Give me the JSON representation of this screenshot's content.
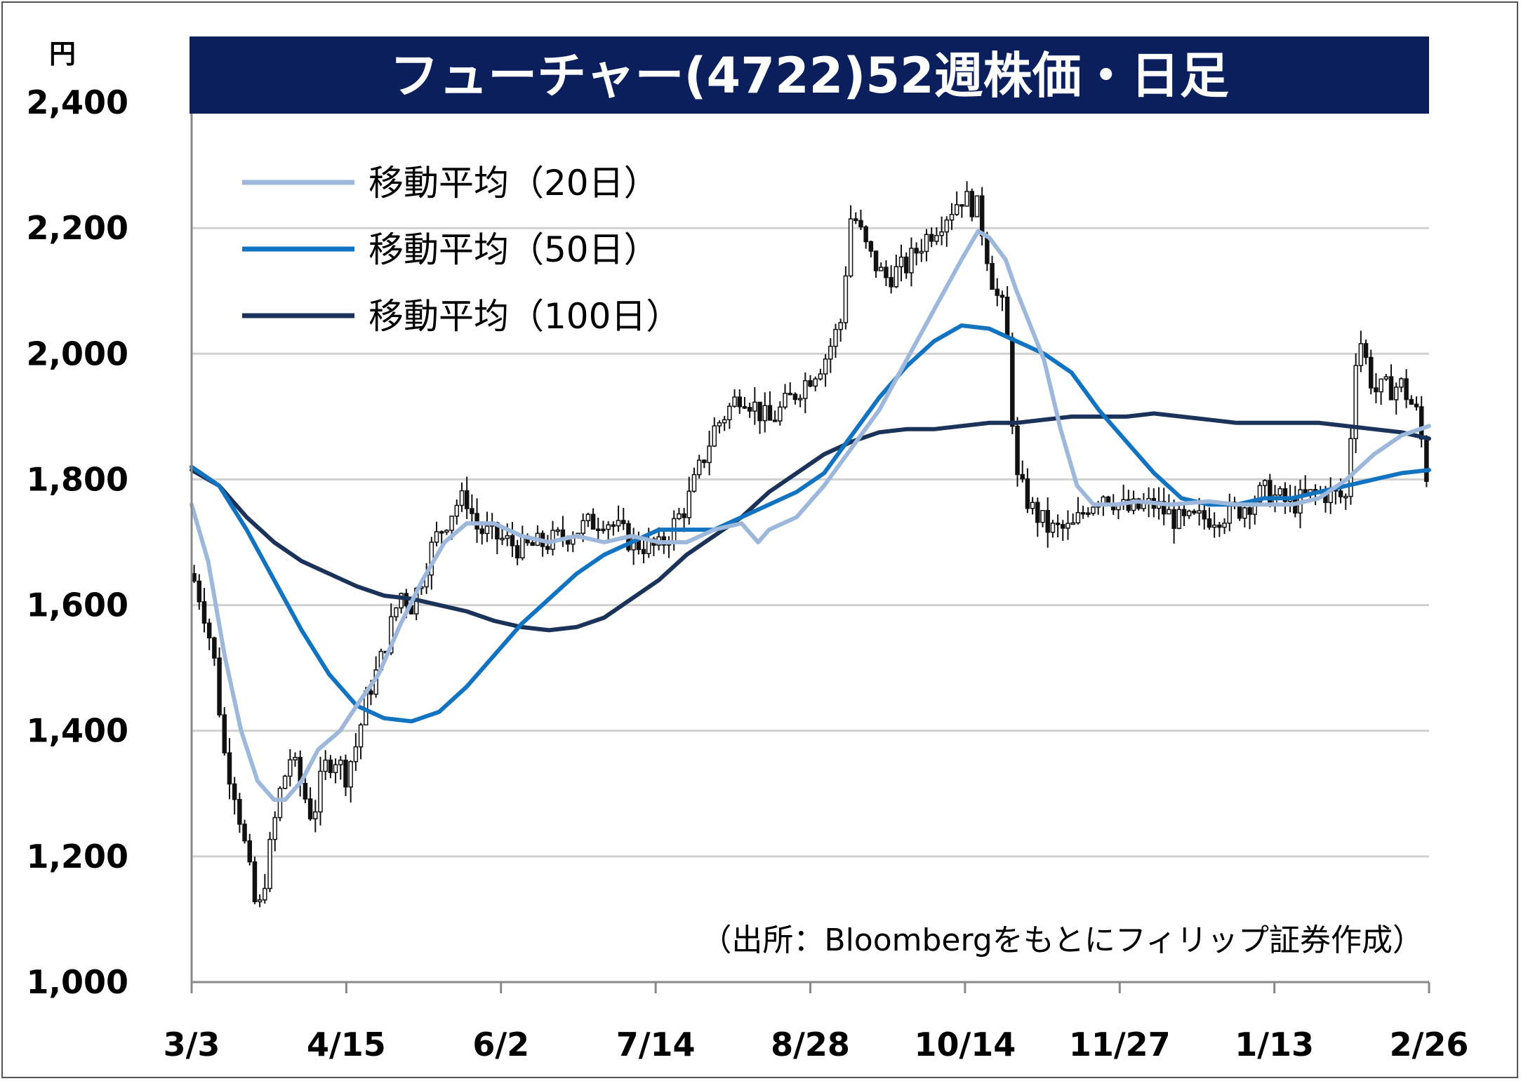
{
  "chart_data": {
    "type": "candlestick",
    "title": "フューチャー(4722)52週株価・日足",
    "ylabel": "円",
    "ylim": [
      1000,
      2400
    ],
    "yticks": [
      "2,400",
      "2,200",
      "2,000",
      "1,800",
      "1,600",
      "1,400",
      "1,200",
      "1,000"
    ],
    "ytick_values": [
      2400,
      2200,
      2000,
      1800,
      1600,
      1400,
      1200,
      1000
    ],
    "xticks": [
      "3/3",
      "4/15",
      "6/2",
      "7/14",
      "8/28",
      "10/14",
      "11/27",
      "1/13",
      "2/26"
    ],
    "grid": true,
    "legend_position": "top-left",
    "source": "（出所：Bloombergをもとにフィリップ証券作成）",
    "colors": {
      "title_bg": "#0a1f5c",
      "ma20": "#9db8da",
      "ma50": "#1273c1",
      "ma100": "#1b3358",
      "grid": "#d0d0d0"
    },
    "series": [
      {
        "name": "移動平均（20日）",
        "points": [
          [
            0,
            1760
          ],
          [
            0.03,
            1670
          ],
          [
            0.06,
            1520
          ],
          [
            0.09,
            1400
          ],
          [
            0.12,
            1320
          ],
          [
            0.15,
            1290
          ],
          [
            0.17,
            1290
          ],
          [
            0.2,
            1320
          ],
          [
            0.23,
            1370
          ],
          [
            0.27,
            1400
          ],
          [
            0.3,
            1440
          ],
          [
            0.34,
            1490
          ],
          [
            0.38,
            1570
          ],
          [
            0.42,
            1640
          ],
          [
            0.46,
            1700
          ],
          [
            0.5,
            1730
          ],
          [
            0.55,
            1730
          ],
          [
            0.6,
            1710
          ],
          [
            0.65,
            1700
          ],
          [
            0.7,
            1710
          ],
          [
            0.75,
            1700
          ],
          [
            0.8,
            1710
          ],
          [
            0.85,
            1700
          ],
          [
            0.9,
            1700
          ],
          [
            0.95,
            1720
          ],
          [
            1.0,
            1730
          ],
          [
            1.03,
            1700
          ],
          [
            1.05,
            1720
          ],
          [
            1.1,
            1740
          ],
          [
            1.15,
            1790
          ],
          [
            1.2,
            1850
          ],
          [
            1.25,
            1910
          ],
          [
            1.3,
            1990
          ],
          [
            1.35,
            2070
          ],
          [
            1.4,
            2150
          ],
          [
            1.43,
            2195
          ],
          [
            1.45,
            2185
          ],
          [
            1.48,
            2150
          ],
          [
            1.5,
            2100
          ],
          [
            1.55,
            1990
          ],
          [
            1.58,
            1880
          ],
          [
            1.61,
            1790
          ],
          [
            1.64,
            1760
          ],
          [
            1.68,
            1760
          ],
          [
            1.72,
            1765
          ],
          [
            1.78,
            1760
          ],
          [
            1.85,
            1765
          ],
          [
            1.9,
            1760
          ],
          [
            1.95,
            1760
          ],
          [
            2.0,
            1760
          ],
          [
            2.05,
            1770
          ],
          [
            2.1,
            1800
          ],
          [
            2.15,
            1840
          ],
          [
            2.2,
            1870
          ],
          [
            2.25,
            1885
          ]
        ]
      },
      {
        "name": "移動平均（50日）",
        "points": [
          [
            0,
            1820
          ],
          [
            0.05,
            1790
          ],
          [
            0.1,
            1720
          ],
          [
            0.15,
            1640
          ],
          [
            0.2,
            1560
          ],
          [
            0.25,
            1490
          ],
          [
            0.3,
            1440
          ],
          [
            0.35,
            1420
          ],
          [
            0.4,
            1415
          ],
          [
            0.45,
            1430
          ],
          [
            0.5,
            1470
          ],
          [
            0.55,
            1520
          ],
          [
            0.6,
            1570
          ],
          [
            0.65,
            1610
          ],
          [
            0.7,
            1650
          ],
          [
            0.75,
            1680
          ],
          [
            0.8,
            1700
          ],
          [
            0.85,
            1720
          ],
          [
            0.9,
            1720
          ],
          [
            0.95,
            1720
          ],
          [
            1.0,
            1740
          ],
          [
            1.05,
            1760
          ],
          [
            1.1,
            1780
          ],
          [
            1.15,
            1810
          ],
          [
            1.2,
            1870
          ],
          [
            1.25,
            1930
          ],
          [
            1.3,
            1980
          ],
          [
            1.35,
            2020
          ],
          [
            1.4,
            2045
          ],
          [
            1.45,
            2040
          ],
          [
            1.5,
            2020
          ],
          [
            1.55,
            2000
          ],
          [
            1.6,
            1970
          ],
          [
            1.65,
            1910
          ],
          [
            1.7,
            1860
          ],
          [
            1.75,
            1810
          ],
          [
            1.8,
            1770
          ],
          [
            1.85,
            1760
          ],
          [
            1.9,
            1760
          ],
          [
            1.95,
            1770
          ],
          [
            2.0,
            1770
          ],
          [
            2.05,
            1780
          ],
          [
            2.1,
            1790
          ],
          [
            2.15,
            1800
          ],
          [
            2.2,
            1810
          ],
          [
            2.25,
            1815
          ]
        ]
      },
      {
        "name": "移動平均（100日）",
        "points": [
          [
            0,
            1815
          ],
          [
            0.05,
            1790
          ],
          [
            0.1,
            1740
          ],
          [
            0.15,
            1700
          ],
          [
            0.2,
            1670
          ],
          [
            0.25,
            1650
          ],
          [
            0.3,
            1630
          ],
          [
            0.35,
            1615
          ],
          [
            0.4,
            1610
          ],
          [
            0.45,
            1600
          ],
          [
            0.5,
            1590
          ],
          [
            0.55,
            1575
          ],
          [
            0.6,
            1565
          ],
          [
            0.65,
            1560
          ],
          [
            0.7,
            1565
          ],
          [
            0.75,
            1580
          ],
          [
            0.8,
            1610
          ],
          [
            0.85,
            1640
          ],
          [
            0.9,
            1680
          ],
          [
            0.95,
            1710
          ],
          [
            1.0,
            1740
          ],
          [
            1.05,
            1780
          ],
          [
            1.1,
            1810
          ],
          [
            1.15,
            1840
          ],
          [
            1.2,
            1860
          ],
          [
            1.25,
            1875
          ],
          [
            1.3,
            1880
          ],
          [
            1.35,
            1880
          ],
          [
            1.4,
            1885
          ],
          [
            1.45,
            1890
          ],
          [
            1.5,
            1890
          ],
          [
            1.55,
            1895
          ],
          [
            1.6,
            1900
          ],
          [
            1.65,
            1900
          ],
          [
            1.7,
            1900
          ],
          [
            1.75,
            1905
          ],
          [
            1.8,
            1900
          ],
          [
            1.85,
            1895
          ],
          [
            1.9,
            1890
          ],
          [
            1.95,
            1890
          ],
          [
            2.0,
            1890
          ],
          [
            2.05,
            1890
          ],
          [
            2.1,
            1885
          ],
          [
            2.15,
            1880
          ],
          [
            2.2,
            1875
          ],
          [
            2.25,
            1865
          ]
        ]
      }
    ],
    "price_trace": [
      [
        0,
        1650
      ],
      [
        0.02,
        1600
      ],
      [
        0.04,
        1520
      ],
      [
        0.06,
        1360
      ],
      [
        0.08,
        1300
      ],
      [
        0.1,
        1200
      ],
      [
        0.12,
        1100
      ],
      [
        0.14,
        1200
      ],
      [
        0.16,
        1300
      ],
      [
        0.18,
        1360
      ],
      [
        0.2,
        1310
      ],
      [
        0.22,
        1260
      ],
      [
        0.24,
        1340
      ],
      [
        0.26,
        1360
      ],
      [
        0.28,
        1330
      ],
      [
        0.3,
        1380
      ],
      [
        0.32,
        1460
      ],
      [
        0.34,
        1500
      ],
      [
        0.36,
        1560
      ],
      [
        0.38,
        1620
      ],
      [
        0.4,
        1600
      ],
      [
        0.42,
        1650
      ],
      [
        0.44,
        1700
      ],
      [
        0.46,
        1730
      ],
      [
        0.48,
        1760
      ],
      [
        0.5,
        1770
      ],
      [
        0.52,
        1720
      ],
      [
        0.55,
        1710
      ],
      [
        0.6,
        1690
      ],
      [
        0.65,
        1700
      ],
      [
        0.7,
        1720
      ],
      [
        0.75,
        1740
      ],
      [
        0.8,
        1700
      ],
      [
        0.85,
        1690
      ],
      [
        0.9,
        1760
      ],
      [
        0.95,
        1880
      ],
      [
        1.0,
        1940
      ],
      [
        1.05,
        1890
      ],
      [
        1.1,
        1940
      ],
      [
        1.15,
        1990
      ],
      [
        1.18,
        2050
      ],
      [
        1.2,
        2230
      ],
      [
        1.23,
        2160
      ],
      [
        1.26,
        2120
      ],
      [
        1.3,
        2140
      ],
      [
        1.33,
        2180
      ],
      [
        1.36,
        2210
      ],
      [
        1.4,
        2250
      ],
      [
        1.43,
        2230
      ],
      [
        1.46,
        2100
      ],
      [
        1.48,
        2060
      ],
      [
        1.5,
        1800
      ],
      [
        1.53,
        1750
      ],
      [
        1.56,
        1720
      ],
      [
        1.6,
        1720
      ],
      [
        1.63,
        1760
      ],
      [
        1.66,
        1780
      ],
      [
        1.7,
        1750
      ],
      [
        1.75,
        1760
      ],
      [
        1.8,
        1730
      ],
      [
        1.85,
        1740
      ],
      [
        1.9,
        1750
      ],
      [
        1.95,
        1780
      ],
      [
        2.0,
        1760
      ],
      [
        2.05,
        1780
      ],
      [
        2.1,
        1770
      ],
      [
        2.12,
        2040
      ],
      [
        2.15,
        1940
      ],
      [
        2.2,
        1950
      ],
      [
        2.23,
        1900
      ],
      [
        2.25,
        1780
      ]
    ]
  }
}
